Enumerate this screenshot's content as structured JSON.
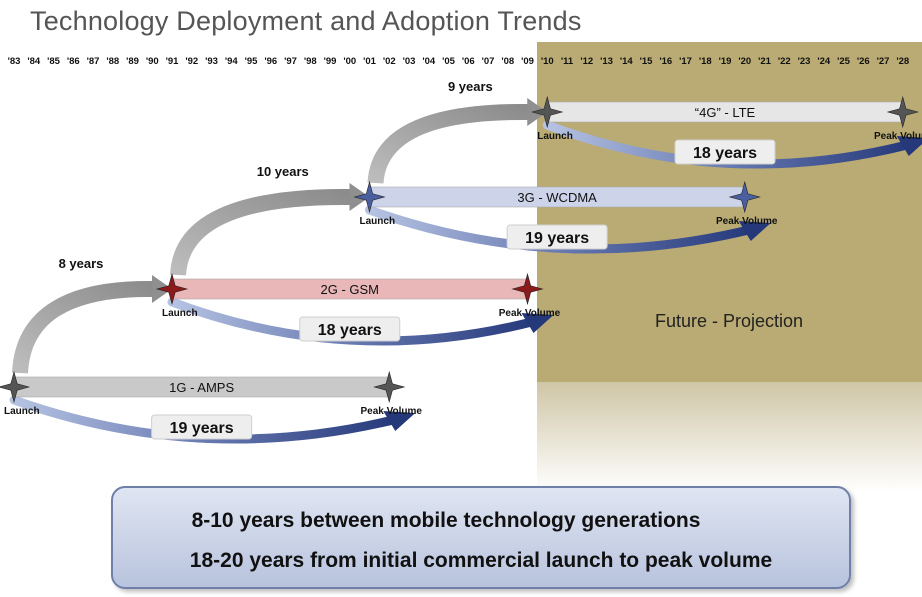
{
  "title": "Technology Deployment and Adoption Trends",
  "year_ticks": [
    "'83",
    "'84",
    "'85",
    "'86",
    "'87",
    "'88",
    "'89",
    "'90",
    "'91",
    "'92",
    "'93",
    "'94",
    "'95",
    "'96",
    "'97",
    "'98",
    "'99",
    "'00",
    "'01",
    "'02",
    "'03",
    "'04",
    "'05",
    "'06",
    "'07",
    "'08",
    "'09",
    "'10",
    "'11",
    "'12",
    "'13",
    "'14",
    "'15",
    "'16",
    "'17",
    "'18",
    "'19",
    "'20",
    "'21",
    "'22",
    "'23",
    "'24",
    "'25",
    "'26",
    "'27",
    "'28"
  ],
  "future_label": "Future - Projection",
  "technologies": [
    {
      "name": "1G - AMPS",
      "launch_label": "Launch",
      "peak_label": "Peak Volume",
      "launch_year": 1983,
      "peak_year": 2002,
      "duration_label": "19 years",
      "color": "#c9c9c9",
      "marker_color": "#555555"
    },
    {
      "name": "2G - GSM",
      "launch_label": "Launch",
      "peak_label": "Peak Volume",
      "launch_year": 1991,
      "peak_year": 2009,
      "duration_label": "18 years",
      "color": "#e9b7b7",
      "marker_color": "#8b1a1a"
    },
    {
      "name": "3G - WCDMA",
      "launch_label": "Launch",
      "peak_label": "Peak Volume",
      "launch_year": 2001,
      "peak_year": 2020,
      "duration_label": "19 years",
      "color": "#cdd4ea",
      "marker_color": "#4a5f9e"
    },
    {
      "name": "“4G” - LTE",
      "launch_label": "Launch",
      "peak_label": "Peak Volume",
      "launch_year": 2010,
      "peak_year": 2028,
      "duration_label": "18 years",
      "color": "#e6e6e6",
      "marker_color": "#555555"
    }
  ],
  "generation_gaps": [
    "8 years",
    "10 years",
    "9 years"
  ],
  "summary": {
    "line1": "8-10 years between mobile technology generations",
    "line2": "18-20 years from initial commercial launch to peak volume"
  }
}
